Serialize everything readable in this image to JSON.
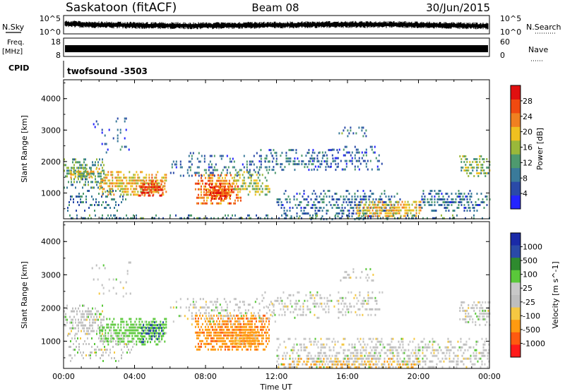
{
  "header": {
    "station": "Saskatoon (fitACF)",
    "beam": "Beam 08",
    "date": "30/Jun/2015"
  },
  "strips": {
    "nsky_label": "N.Sky",
    "nsky_ticks": [
      "10^5",
      "10^0"
    ],
    "nsearch_label": "N.Search",
    "nsearch_ticks": [
      "10^5",
      "10^0"
    ],
    "freq_label": "Freq.",
    "freq_unit": "[MHz]",
    "freq_ticks": [
      "18",
      "8"
    ],
    "nave_label": "Nave",
    "nave_ticks": [
      "60",
      "0"
    ],
    "cpid_label": "CPID",
    "cpid_value": "twofsound -3503"
  },
  "colors": {
    "power_scale": [
      "#2424ff",
      "#2a4aa8",
      "#3a7a9a",
      "#4e9a6e",
      "#9ab83a",
      "#f0c020",
      "#f08020",
      "#f04a10",
      "#e01010"
    ],
    "velocity_scale": [
      "#ff1a1a",
      "#ff5a10",
      "#ff9a10",
      "#f5c842",
      "#bebebe",
      "#c8c8c8",
      "#5ac83a",
      "#2e8a2e",
      "#2a4aa8",
      "#1a2aa8"
    ]
  },
  "chart_data": [
    {
      "type": "heatmap",
      "panel": "power",
      "ylabel": "Slant Range [km]",
      "xlabel": "Time UT",
      "x_ticks": [
        "00:00",
        "04:00",
        "08:00",
        "12:00",
        "16:00",
        "20:00",
        "00:00"
      ],
      "x_range_hours": [
        0,
        24
      ],
      "y_ticks": [
        "1000",
        "2000",
        "3000",
        "4000"
      ],
      "y_range_km": [
        180,
        4600
      ],
      "colorbar": {
        "label": "Power [dB]",
        "ticks": [
          "4",
          "8",
          "12",
          "16",
          "20",
          "24",
          "28"
        ],
        "range": [
          0,
          32
        ]
      },
      "patches": [
        {
          "t0": 0.0,
          "t1": 2.3,
          "r0": 1200,
          "r1": 2100,
          "v": 12,
          "d": 0.7
        },
        {
          "t0": 0.3,
          "t1": 2.0,
          "r0": 1500,
          "r1": 1800,
          "v": 18,
          "d": 0.8
        },
        {
          "t0": 2.0,
          "t1": 5.8,
          "r0": 900,
          "r1": 1700,
          "v": 20,
          "d": 0.85
        },
        {
          "t0": 4.2,
          "t1": 5.6,
          "r0": 950,
          "r1": 1400,
          "v": 28,
          "d": 0.9
        },
        {
          "t0": 0.2,
          "t1": 3.5,
          "r0": 400,
          "r1": 1100,
          "v": 9,
          "d": 0.35
        },
        {
          "t0": 7.4,
          "t1": 10.0,
          "r0": 700,
          "r1": 1600,
          "v": 24,
          "d": 0.9
        },
        {
          "t0": 8.0,
          "t1": 9.5,
          "r0": 800,
          "r1": 1300,
          "v": 28,
          "d": 0.85
        },
        {
          "t0": 9.5,
          "t1": 11.6,
          "r0": 900,
          "r1": 1700,
          "v": 16,
          "d": 0.6
        },
        {
          "t0": 6.0,
          "t1": 12.0,
          "r0": 1500,
          "r1": 2300,
          "v": 8,
          "d": 0.3
        },
        {
          "t0": 1.5,
          "t1": 3.8,
          "r0": 2300,
          "r1": 3400,
          "v": 6,
          "d": 0.12
        },
        {
          "t0": 11.0,
          "t1": 15.5,
          "r0": 1700,
          "r1": 2400,
          "v": 8,
          "d": 0.4
        },
        {
          "t0": 12.0,
          "t1": 19.0,
          "r0": 200,
          "r1": 1100,
          "v": 8,
          "d": 0.5
        },
        {
          "t0": 16.5,
          "t1": 20.3,
          "r0": 250,
          "r1": 750,
          "v": 20,
          "d": 0.8
        },
        {
          "t0": 14.0,
          "t1": 18.0,
          "r0": 1700,
          "r1": 2500,
          "v": 7,
          "d": 0.3
        },
        {
          "t0": 20.0,
          "t1": 24.0,
          "r0": 400,
          "r1": 1100,
          "v": 8,
          "d": 0.55
        },
        {
          "t0": 22.3,
          "t1": 24.0,
          "r0": 1500,
          "r1": 2200,
          "v": 14,
          "d": 0.6
        },
        {
          "t0": 15.5,
          "t1": 17.5,
          "r0": 2800,
          "r1": 3200,
          "v": 10,
          "d": 0.2
        },
        {
          "t0": 0.0,
          "t1": 24.0,
          "r0": 180,
          "r1": 320,
          "v": 10,
          "d": 0.4
        }
      ]
    },
    {
      "type": "heatmap",
      "panel": "velocity",
      "ylabel": "Slant Range [km]",
      "xlabel": "Time UT",
      "x_ticks": [
        "00:00",
        "04:00",
        "08:00",
        "12:00",
        "16:00",
        "20:00",
        "00:00"
      ],
      "x_range_hours": [
        0,
        24
      ],
      "y_ticks": [
        "1000",
        "2000",
        "3000",
        "4000"
      ],
      "y_range_km": [
        180,
        4600
      ],
      "colorbar": {
        "label": "Velocity [m s^-1]",
        "ticks": [
          "1000",
          "500",
          "100",
          "25",
          "-25",
          "-100",
          "-500",
          "-1000"
        ]
      },
      "patches": [
        {
          "t0": 0.0,
          "t1": 2.3,
          "r0": 1200,
          "r1": 2100,
          "v": 0,
          "d": 0.7
        },
        {
          "t0": 2.0,
          "t1": 5.8,
          "r0": 900,
          "r1": 1700,
          "v": 80,
          "d": 0.8
        },
        {
          "t0": 4.3,
          "t1": 5.7,
          "r0": 1000,
          "r1": 1600,
          "v": 300,
          "d": 0.6
        },
        {
          "t0": 7.4,
          "t1": 11.6,
          "r0": 700,
          "r1": 1800,
          "v": -220,
          "d": 0.9
        },
        {
          "t0": 9.5,
          "t1": 11.0,
          "r0": 800,
          "r1": 1300,
          "v": -80,
          "d": 0.7
        },
        {
          "t0": 0.2,
          "t1": 4.0,
          "r0": 400,
          "r1": 1200,
          "v": 0,
          "d": 0.35
        },
        {
          "t0": 6.0,
          "t1": 12.0,
          "r0": 1500,
          "r1": 2300,
          "v": 0,
          "d": 0.3
        },
        {
          "t0": 12.0,
          "t1": 24.0,
          "r0": 200,
          "r1": 1100,
          "v": 0,
          "d": 0.55
        },
        {
          "t0": 12.0,
          "t1": 20.0,
          "r0": 200,
          "r1": 500,
          "v": -60,
          "d": 0.5
        },
        {
          "t0": 11.0,
          "t1": 18.0,
          "r0": 1700,
          "r1": 2500,
          "v": 0,
          "d": 0.35
        },
        {
          "t0": 22.3,
          "t1": 24.0,
          "r0": 1500,
          "r1": 2200,
          "v": 0,
          "d": 0.6
        },
        {
          "t0": 1.5,
          "t1": 3.8,
          "r0": 2300,
          "r1": 3400,
          "v": 0,
          "d": 0.12
        },
        {
          "t0": 15.5,
          "t1": 17.5,
          "r0": 2800,
          "r1": 3200,
          "v": 0,
          "d": 0.2
        }
      ]
    }
  ]
}
